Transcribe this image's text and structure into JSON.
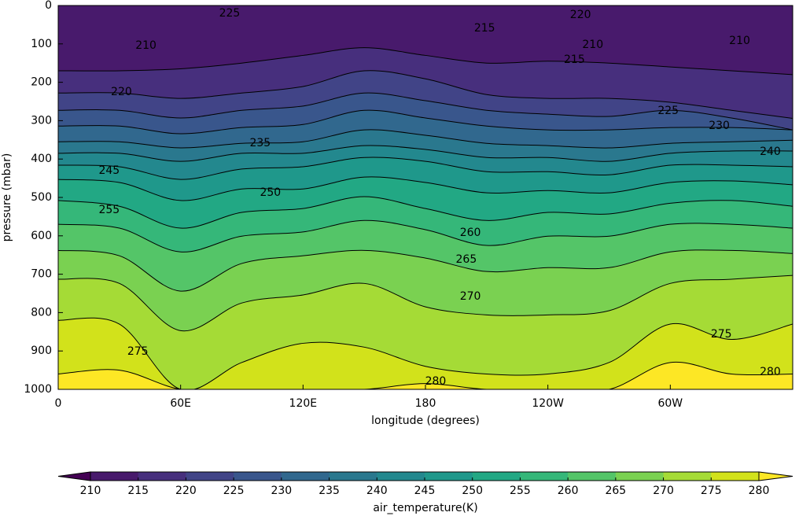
{
  "chart_data": {
    "type": "contourf",
    "xlabel": "longitude (degrees)",
    "ylabel": "pressure (mbar)",
    "colorbar_label": "air_temperature(K)",
    "xlim": [
      0,
      360
    ],
    "ylim": [
      1000,
      0
    ],
    "xticks": [
      0,
      {
        "value": 60,
        "label": "60E"
      },
      {
        "value": 120,
        "label": "120E"
      },
      180,
      {
        "value": 240,
        "label": "120W"
      },
      {
        "value": 300,
        "label": "60W"
      }
    ],
    "yticks": [
      0,
      100,
      200,
      300,
      400,
      500,
      600,
      700,
      800,
      900,
      1000
    ],
    "levels": [
      210,
      215,
      220,
      225,
      230,
      235,
      240,
      245,
      250,
      255,
      260,
      265,
      270,
      275,
      280
    ],
    "colors": [
      "#440154",
      "#481a6c",
      "#472f7d",
      "#414487",
      "#39568c",
      "#31688e",
      "#2a788e",
      "#23888e",
      "#1f988b",
      "#22a884",
      "#35b779",
      "#54c568",
      "#7ad151",
      "#a5db36",
      "#d2e21b",
      "#fde725"
    ],
    "x": [
      0,
      30,
      60,
      90,
      120,
      150,
      180,
      210,
      240,
      270,
      300,
      330,
      360
    ],
    "series": [
      {
        "name": "215",
        "values": [
          170,
          170,
          165,
          150,
          130,
          110,
          130,
          150,
          145,
          150,
          160,
          170,
          180
        ]
      },
      {
        "name": "220",
        "values": [
          228,
          228,
          242,
          228,
          211,
          170,
          191,
          232,
          242,
          242,
          252,
          273,
          294
        ]
      },
      {
        "name": "225",
        "values": [
          273,
          273,
          293,
          273,
          262,
          228,
          248,
          273,
          283,
          289,
          273,
          293,
          324
        ]
      },
      {
        "name": "230",
        "values": [
          314,
          314,
          334,
          318,
          310,
          273,
          293,
          314,
          324,
          324,
          318,
          318,
          324
        ]
      },
      {
        "name": "235",
        "values": [
          355,
          355,
          371,
          359,
          355,
          324,
          338,
          359,
          365,
          371,
          359,
          355,
          351
        ]
      },
      {
        "name": "240",
        "values": [
          385,
          385,
          406,
          385,
          385,
          365,
          375,
          396,
          396,
          406,
          385,
          379,
          379
        ]
      },
      {
        "name": "245",
        "values": [
          416,
          420,
          453,
          426,
          420,
          396,
          406,
          433,
          433,
          441,
          416,
          416,
          420
        ]
      },
      {
        "name": "250",
        "values": [
          453,
          461,
          508,
          478,
          478,
          447,
          461,
          488,
          482,
          488,
          461,
          457,
          467
        ]
      },
      {
        "name": "255",
        "values": [
          508,
          523,
          580,
          539,
          529,
          498,
          529,
          560,
          539,
          543,
          515,
          508,
          523
        ]
      },
      {
        "name": "260",
        "values": [
          570,
          580,
          642,
          601,
          590,
          560,
          584,
          625,
          601,
          601,
          570,
          570,
          580
        ]
      },
      {
        "name": "265",
        "values": [
          638,
          652,
          744,
          672,
          652,
          638,
          658,
          693,
          683,
          683,
          642,
          638,
          646
        ]
      },
      {
        "name": "270",
        "values": [
          713,
          724,
          847,
          775,
          754,
          724,
          785,
          806,
          806,
          795,
          724,
          713,
          703
        ]
      },
      {
        "name": "275",
        "values": [
          820,
          830,
          1000,
          930,
          880,
          890,
          940,
          960,
          960,
          930,
          830,
          870,
          830
        ]
      },
      {
        "name": "280",
        "values": [
          960,
          950,
          1000,
          1000,
          1000,
          1000,
          985,
          1000,
          1000,
          1000,
          930,
          960,
          960
        ]
      }
    ],
    "contour_labels": [
      {
        "level": 210,
        "lon": 43,
        "pressure": 104
      },
      {
        "level": 210,
        "lon": 262,
        "pressure": 102
      },
      {
        "level": 210,
        "lon": 334,
        "pressure": 92
      },
      {
        "level": 215,
        "lon": 209,
        "pressure": 59
      },
      {
        "level": 215,
        "lon": 253,
        "pressure": 141
      },
      {
        "level": 220,
        "lon": 31,
        "pressure": 225
      },
      {
        "level": 220,
        "lon": 256,
        "pressure": 25
      },
      {
        "level": 225,
        "lon": 84,
        "pressure": 20
      },
      {
        "level": 225,
        "lon": 299,
        "pressure": 275
      },
      {
        "level": 230,
        "lon": 324,
        "pressure": 314
      },
      {
        "level": 235,
        "lon": 99,
        "pressure": 359
      },
      {
        "level": 240,
        "lon": 349,
        "pressure": 381
      },
      {
        "level": 245,
        "lon": 25,
        "pressure": 430
      },
      {
        "level": 250,
        "lon": 104,
        "pressure": 488
      },
      {
        "level": 255,
        "lon": 25,
        "pressure": 533
      },
      {
        "level": 260,
        "lon": 202,
        "pressure": 592
      },
      {
        "level": 265,
        "lon": 200,
        "pressure": 662
      },
      {
        "level": 270,
        "lon": 202,
        "pressure": 758
      },
      {
        "level": 275,
        "lon": 39,
        "pressure": 902
      },
      {
        "level": 275,
        "lon": 325,
        "pressure": 857
      },
      {
        "level": 280,
        "lon": 185,
        "pressure": 980
      },
      {
        "level": 280,
        "lon": 349,
        "pressure": 955
      }
    ]
  }
}
